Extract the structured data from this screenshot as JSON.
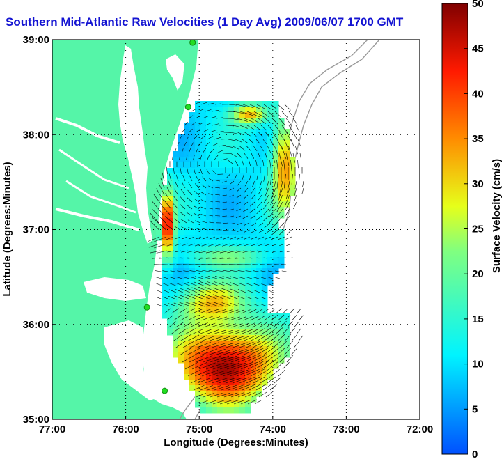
{
  "title": "Southern Mid-Atlantic Raw Velocities (1 Day Avg) 2009/06/07 1700 GMT",
  "map": {
    "xlabel": "Longitude (Degrees:Minutes)",
    "ylabel": "Latitude (Degrees:Minutes)",
    "lon_range": [
      -77,
      -72
    ],
    "lat_range": [
      35,
      39
    ],
    "x_ticks": [
      "77:00",
      "76:00",
      "75:00",
      "74:00",
      "73:00",
      "72:00"
    ],
    "y_ticks": [
      "35:00",
      "36:00",
      "37:00",
      "38:00",
      "39:00"
    ],
    "grid": "dotted",
    "colors": {
      "land": "#55f5a8",
      "ocean": "#ffffff",
      "title": "#1414d2",
      "contour": "#999999",
      "station": "#22dd22"
    },
    "stations": [
      {
        "lon": -75.09,
        "lat": 38.97
      },
      {
        "lon": -75.15,
        "lat": 38.29
      },
      {
        "lon": -75.71,
        "lat": 36.18
      },
      {
        "lon": -75.47,
        "lat": 35.3
      }
    ]
  },
  "colorbar": {
    "label": "Surface Velocity (cm/s)",
    "min": 0,
    "max": 50,
    "ticks": [
      "0",
      "5",
      "10",
      "15",
      "20",
      "25",
      "30",
      "35",
      "40",
      "45",
      "50"
    ]
  }
}
